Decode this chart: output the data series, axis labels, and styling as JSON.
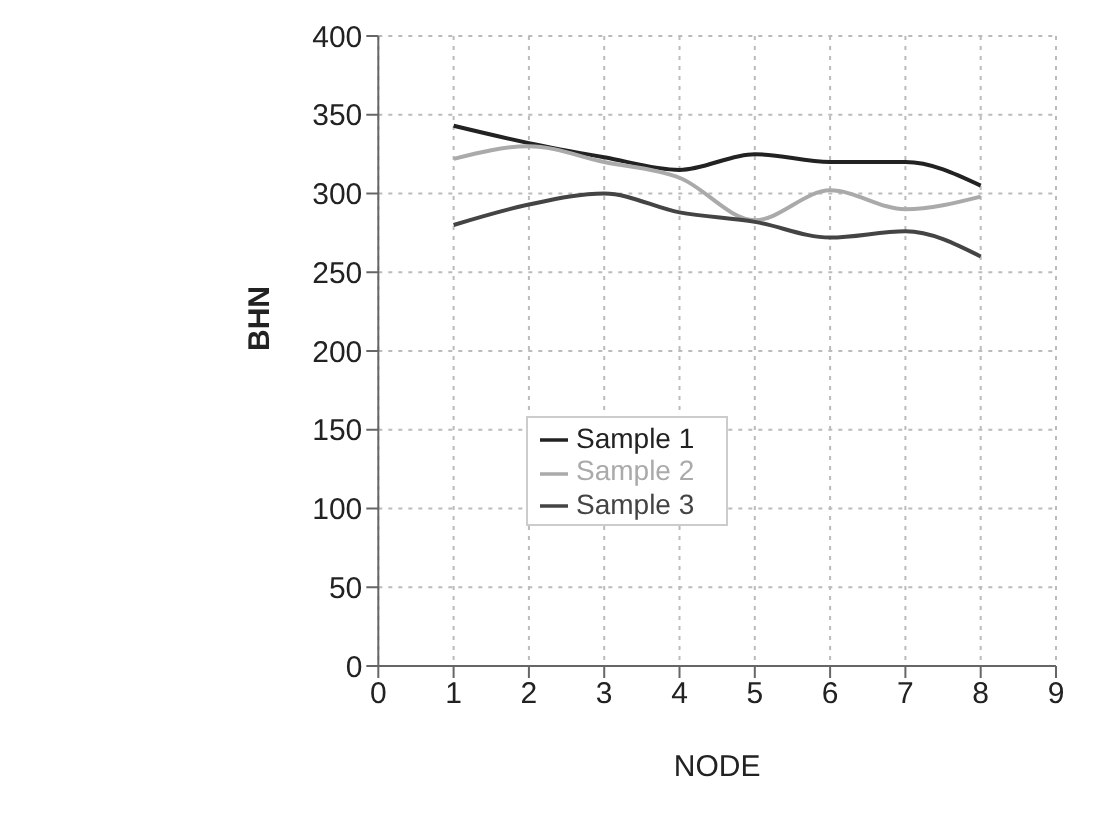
{
  "chart_data": {
    "type": "line",
    "xlabel": "NODE",
    "ylabel": "BHN",
    "x": [
      1,
      2,
      3,
      4,
      5,
      6,
      7,
      8
    ],
    "series": [
      {
        "name": "Sample 1",
        "color": "#222222",
        "values": [
          343,
          332,
          323,
          315,
          325,
          320,
          320,
          305
        ]
      },
      {
        "name": "Sample 2",
        "color": "#aaaaaa",
        "values": [
          322,
          330,
          320,
          310,
          283,
          302,
          290,
          298
        ]
      },
      {
        "name": "Sample 3",
        "color": "#444444",
        "values": [
          280,
          293,
          300,
          288,
          282,
          272,
          276,
          260
        ]
      }
    ],
    "xlim": [
      0,
      9
    ],
    "xticks": [
      0,
      1,
      2,
      3,
      4,
      5,
      6,
      7,
      8,
      9
    ],
    "ylim": [
      0,
      400
    ],
    "yticks": [
      0,
      50,
      100,
      150,
      200,
      250,
      300,
      350,
      400
    ],
    "grid": true,
    "legend": "center",
    "marker": "none",
    "line_style": "solid"
  }
}
